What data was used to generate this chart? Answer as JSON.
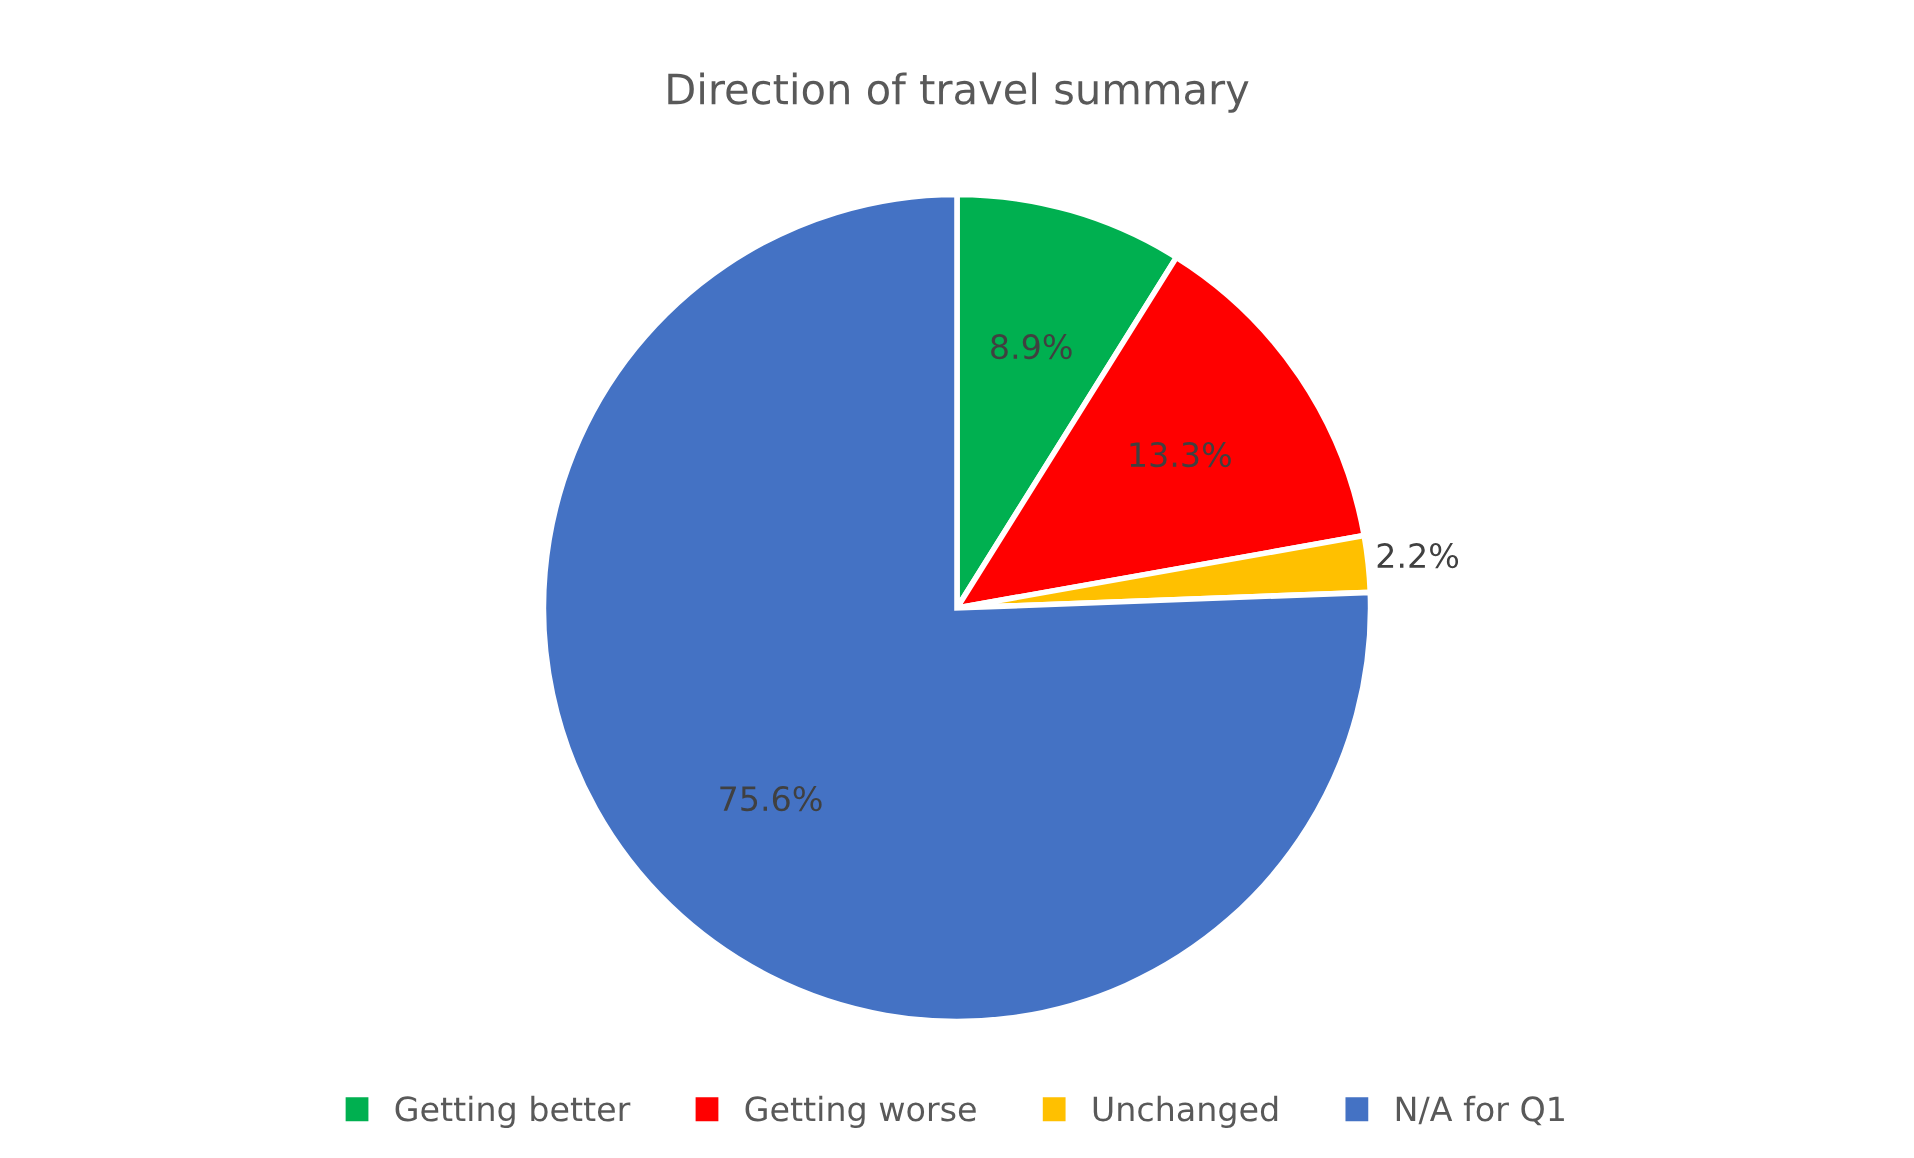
{
  "chart_data": {
    "type": "pie",
    "title": "Direction of travel summary",
    "categories": [
      "Getting better",
      "Getting worse",
      "Unchanged",
      "N/A for Q1"
    ],
    "values": [
      8.9,
      13.3,
      2.2,
      75.6
    ],
    "colors": [
      "#00b050",
      "#ff0000",
      "#ffc000",
      "#4472c4"
    ],
    "value_labels": [
      "8.9%",
      "13.3%",
      "2.2%",
      "75.6%"
    ],
    "legend": "bottom"
  }
}
